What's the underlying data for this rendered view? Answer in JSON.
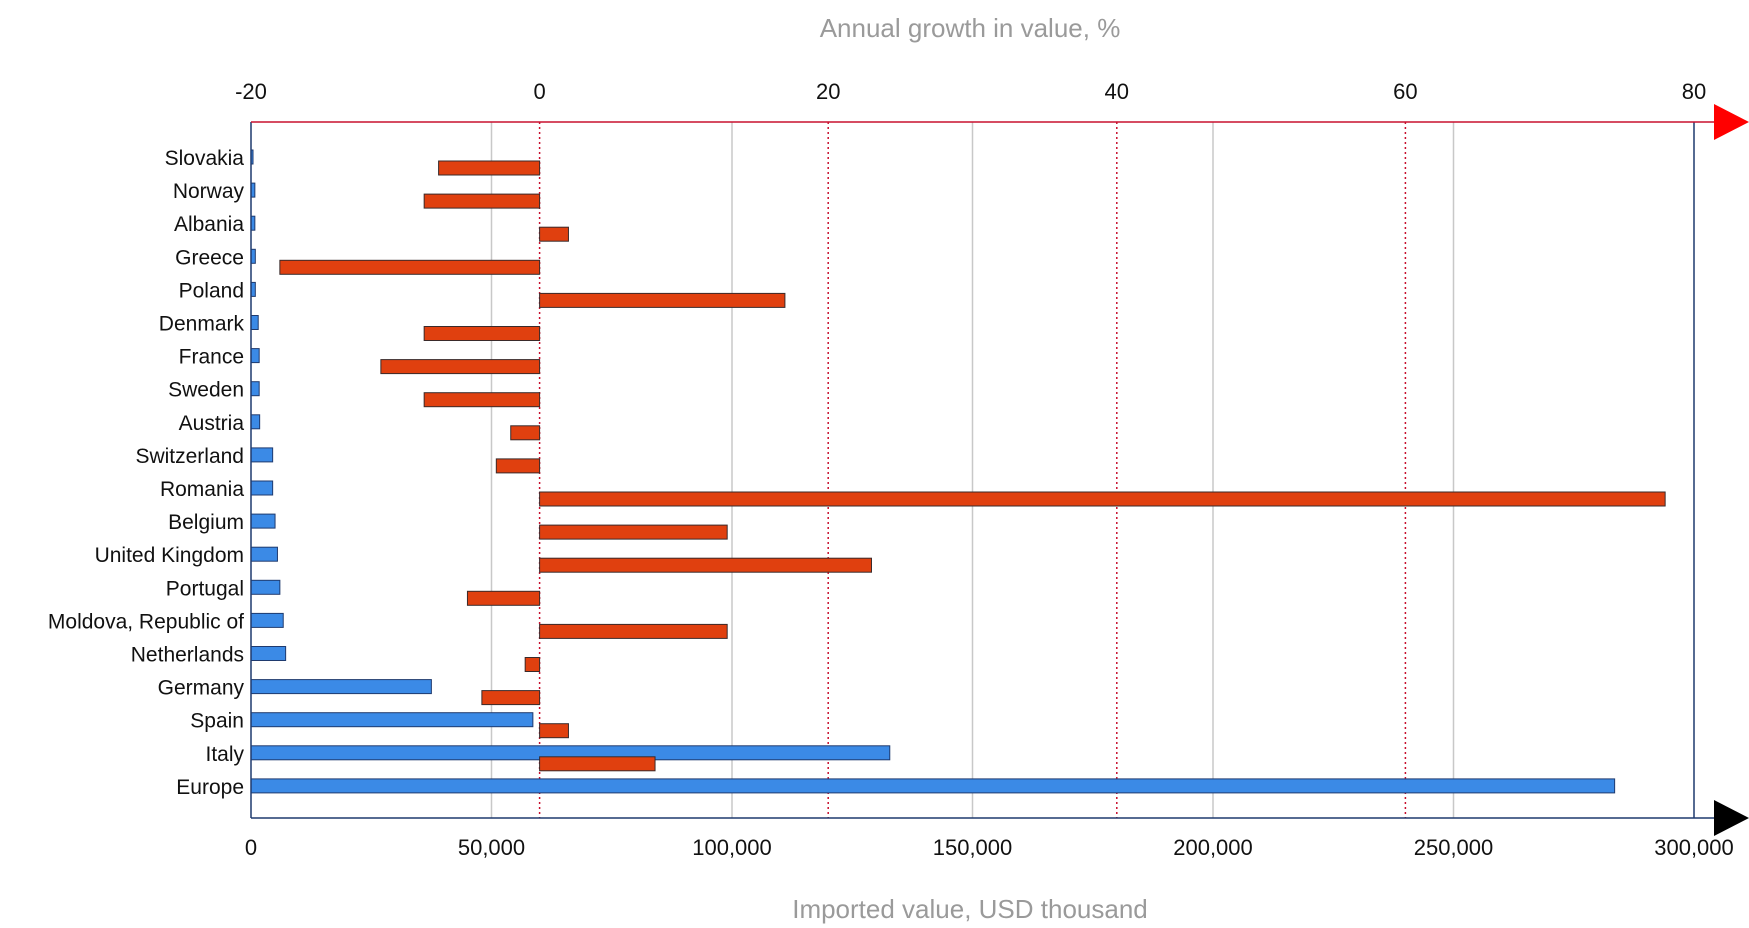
{
  "chart_data": {
    "type": "bar",
    "orientation": "horizontal",
    "title": "",
    "categories": [
      "Slovakia",
      "Norway",
      "Albania",
      "Greece",
      "Poland",
      "Denmark",
      "France",
      "Sweden",
      "Austria",
      "Switzerland",
      "Romania",
      "Belgium",
      "United Kingdom",
      "Portugal",
      "Moldova, Republic of",
      "Netherlands",
      "Germany",
      "Spain",
      "Italy",
      "Europe"
    ],
    "series": [
      {
        "axis": "bottom",
        "color": "#3b8ae6",
        "values": [
          300,
          800,
          800,
          900,
          900,
          1500,
          1700,
          1700,
          1800,
          4500,
          4500,
          5000,
          5500,
          6000,
          6700,
          7200,
          37500,
          58600,
          132800,
          283500
        ]
      },
      {
        "axis": "top",
        "color": "#e0400f",
        "values": [
          -7,
          -8,
          2,
          -18,
          17,
          -8,
          -11,
          -8,
          -2,
          -3,
          78,
          13,
          23,
          -5,
          13,
          -1,
          -4,
          2,
          8,
          null
        ]
      }
    ],
    "bottom_axis": {
      "label": "Imported value, USD thousand",
      "min": 0,
      "max": 300000,
      "ticks": [
        0,
        50000,
        100000,
        150000,
        200000,
        250000,
        300000
      ],
      "tick_labels": [
        "0",
        "50,000",
        "100,000",
        "150,000",
        "200,000",
        "250,000",
        "300,000"
      ],
      "color": "#1f3a6e",
      "arrow_color": "#000000",
      "grid": true,
      "grid_color": "#c8c8c8"
    },
    "top_axis": {
      "label": "Annual growth in value, %",
      "min": -20,
      "max": 80,
      "ticks": [
        -20,
        0,
        20,
        40,
        60,
        80
      ],
      "tick_labels": [
        "-20",
        "0",
        "20",
        "40",
        "60",
        "80"
      ],
      "color": "#c8102e",
      "arrow_color": "#ff0000",
      "grid": true,
      "grid_style": "dotted"
    }
  }
}
